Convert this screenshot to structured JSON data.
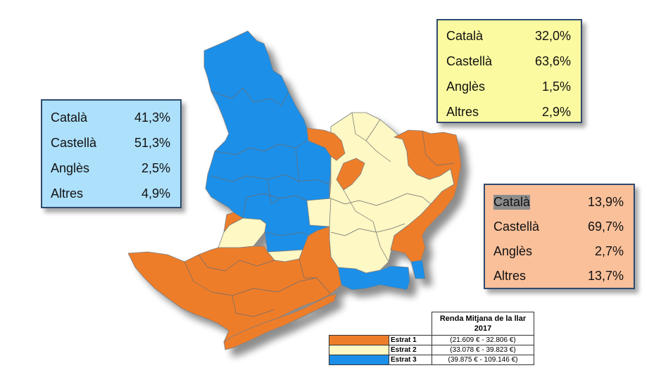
{
  "colors": {
    "estrat1": "#ee7d2a",
    "estrat2": "#fdf8c4",
    "estrat3": "#1c8fe8",
    "box_blue": "#ade0fb",
    "box_yellow": "#fbfaa0",
    "box_orange": "#f9c09a"
  },
  "boxes": {
    "blue": {
      "rows": [
        {
          "lang": "Català",
          "value": "41,3%"
        },
        {
          "lang": "Castellà",
          "value": "51,3%"
        },
        {
          "lang": "Anglès",
          "value": "2,5%"
        },
        {
          "lang": "Altres",
          "value": "4,9%"
        }
      ]
    },
    "yellow": {
      "rows": [
        {
          "lang": "Català",
          "value": "32,0%"
        },
        {
          "lang": "Castellà",
          "value": "63,6%"
        },
        {
          "lang": "Anglès",
          "value": "1,5%"
        },
        {
          "lang": "Altres",
          "value": "2,9%"
        }
      ]
    },
    "orange": {
      "rows": [
        {
          "lang": "Català",
          "value": "13,9%"
        },
        {
          "lang": "Castellà",
          "value": "69,7%"
        },
        {
          "lang": "Anglès",
          "value": "2,7%"
        },
        {
          "lang": "Altres",
          "value": "13,7%"
        }
      ]
    }
  },
  "legend": {
    "header": "Renda Mitjana de la llar 2017",
    "items": [
      {
        "name": "Estrat 1",
        "range": "(21.609 € - 32.806 €)",
        "color": "#ee7d2a"
      },
      {
        "name": "Estrat 2",
        "range": "(33.078 € - 39.823 €)",
        "color": "#fdf8c4"
      },
      {
        "name": "Estrat 3",
        "range": "(39.875 € - 109.146 €)",
        "color": "#1c8fe8"
      }
    ]
  }
}
